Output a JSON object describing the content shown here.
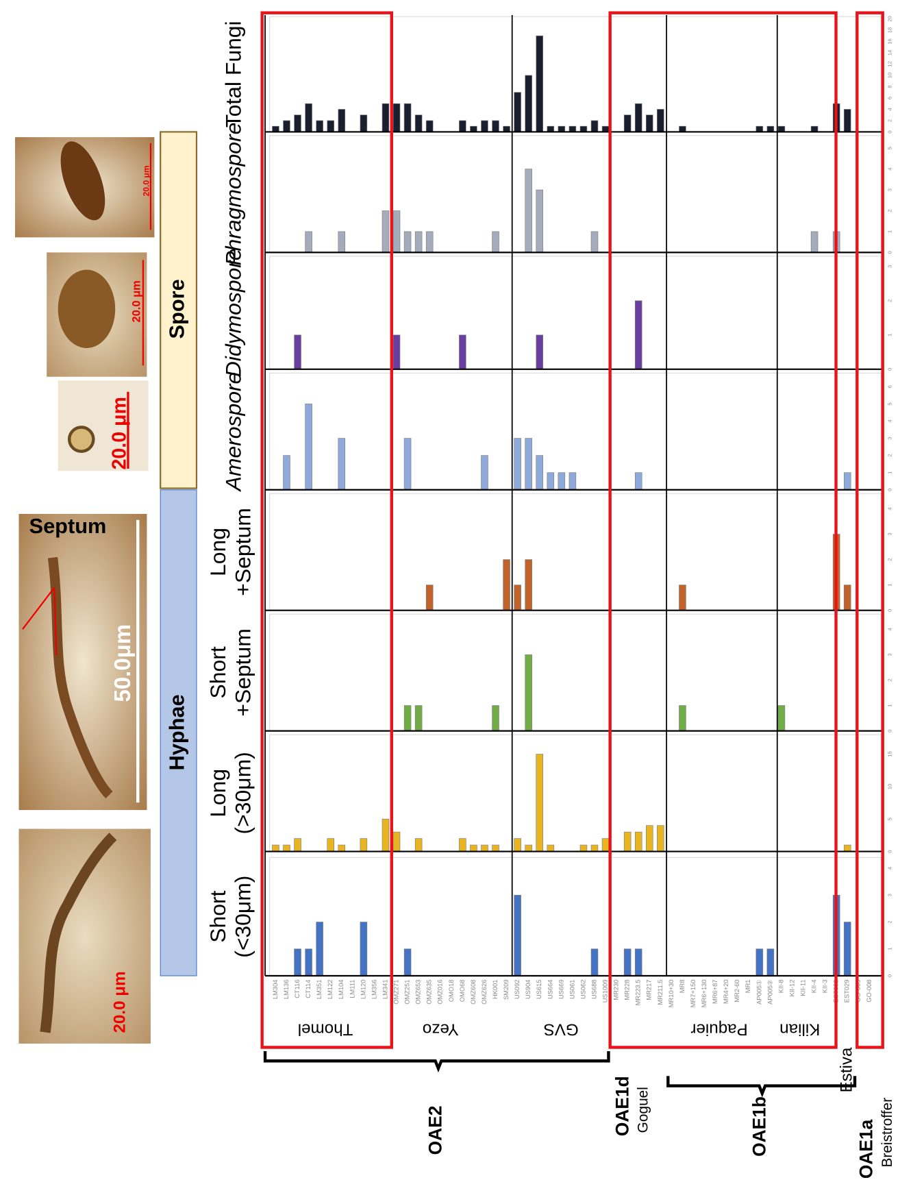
{
  "chart_data": {
    "type": "bar",
    "categories": [
      "LM304",
      "LM136",
      "CT116",
      "CT114",
      "LM351",
      "LM122",
      "LM104",
      "LM111",
      "LM120",
      "LM356",
      "LM341",
      "OMZ271",
      "OMZ251",
      "OMZ653",
      "OMZ635",
      "OMZ016",
      "OMO18",
      "OMO68",
      "OMZ608",
      "OMZ626",
      "HK001",
      "SM209",
      "US092",
      "US904",
      "US615",
      "US664",
      "US669",
      "US061",
      "US062",
      "US688",
      "US1009",
      "MR230",
      "MR228",
      "MR223.5",
      "MR217",
      "MR211.5",
      "MR10+30",
      "MR8",
      "MR7+150",
      "MR6+130",
      "MR6+87",
      "MR4+20",
      "MR2-60",
      "MR1",
      "AP005①",
      "AP005②",
      "KII-8",
      "KII-12",
      "KII-11",
      "KII-4",
      "KII-3",
      "EST002",
      "EST029",
      "GO-009",
      "GO-008"
    ],
    "series": [
      {
        "name": "Short\n(<30μm)",
        "color": "#4472c4",
        "ylim": [
          0,
          4.4
        ],
        "yticks": [
          0,
          1,
          2,
          3,
          4
        ],
        "values": [
          0,
          0,
          1,
          1,
          2,
          0,
          0,
          0,
          2,
          0,
          0,
          0,
          1,
          0,
          0,
          0,
          0,
          0,
          0,
          0,
          0,
          0,
          3,
          0,
          0,
          0,
          0,
          0,
          0,
          1,
          0,
          0,
          1,
          1,
          0,
          0,
          0,
          0,
          0,
          0,
          0,
          0,
          0,
          0,
          1,
          1,
          0,
          0,
          0,
          0,
          0,
          3,
          2,
          0,
          0
        ]
      },
      {
        "name": "Long\n(>30μm)",
        "color": "#e8b520",
        "ylim": [
          0,
          18
        ],
        "yticks": [
          0,
          5,
          10,
          15
        ],
        "values": [
          1,
          1,
          2,
          0,
          0,
          2,
          1,
          0,
          2,
          0,
          5,
          3,
          0,
          2,
          0,
          0,
          0,
          2,
          1,
          1,
          1,
          0,
          2,
          1,
          15,
          1,
          0,
          0,
          1,
          1,
          2,
          0,
          3,
          3,
          4,
          4,
          0,
          0,
          0,
          0,
          0,
          0,
          0,
          0,
          0,
          0,
          0,
          0,
          0,
          0,
          0,
          0,
          1,
          0,
          0
        ]
      },
      {
        "name": "Short\n+Septum",
        "color": "#70ad47",
        "ylim": [
          0,
          4.6
        ],
        "yticks": [
          0,
          1,
          2,
          3,
          4
        ],
        "values": [
          0,
          0,
          0,
          0,
          0,
          0,
          0,
          0,
          0,
          0,
          0,
          0,
          1,
          1,
          0,
          0,
          0,
          0,
          0,
          0,
          1,
          0,
          0,
          3,
          0,
          0,
          0,
          0,
          0,
          0,
          0,
          0,
          0,
          0,
          0,
          0,
          0,
          1,
          0,
          0,
          0,
          0,
          0,
          0,
          0,
          0,
          1,
          0,
          0,
          0,
          0,
          0,
          0,
          0,
          0
        ]
      },
      {
        "name": "Long\n+Septum",
        "color": "#c0622a",
        "ylim": [
          0,
          4.6
        ],
        "yticks": [
          0,
          1,
          2,
          3,
          4
        ],
        "values": [
          0,
          0,
          0,
          0,
          0,
          0,
          0,
          0,
          0,
          0,
          0,
          0,
          0,
          0,
          1,
          0,
          0,
          0,
          0,
          0,
          0,
          2,
          1,
          2,
          0,
          0,
          0,
          0,
          0,
          0,
          0,
          0,
          0,
          0,
          0,
          0,
          0,
          1,
          0,
          0,
          0,
          0,
          0,
          0,
          0,
          0,
          0,
          0,
          0,
          0,
          0,
          3,
          1,
          0,
          0
        ]
      },
      {
        "name": "Amerospore",
        "color": "#8eaadb",
        "ylim": [
          0,
          6.8
        ],
        "yticks": [
          0,
          1,
          2,
          3,
          4,
          5,
          6
        ],
        "values": [
          0,
          2,
          0,
          5,
          0,
          0,
          3,
          0,
          0,
          0,
          0,
          0,
          3,
          0,
          0,
          0,
          0,
          0,
          0,
          2,
          0,
          0,
          3,
          3,
          2,
          1,
          1,
          1,
          0,
          0,
          0,
          0,
          0,
          1,
          0,
          0,
          0,
          0,
          0,
          0,
          0,
          0,
          0,
          0,
          0,
          0,
          0,
          0,
          0,
          0,
          0,
          0,
          1,
          0,
          0
        ]
      },
      {
        "name": "Didymospore",
        "color": "#6a3ea1",
        "ylim": [
          0,
          3.3
        ],
        "yticks": [
          0,
          1,
          2,
          3
        ],
        "values": [
          0,
          0,
          1,
          0,
          0,
          0,
          0,
          0,
          0,
          0,
          0,
          1,
          0,
          0,
          0,
          0,
          0,
          1,
          0,
          0,
          0,
          0,
          0,
          0,
          1,
          0,
          0,
          0,
          0,
          0,
          0,
          0,
          0,
          2,
          0,
          0,
          0,
          0,
          0,
          0,
          0,
          0,
          0,
          0,
          0,
          0,
          0,
          0,
          0,
          0,
          0,
          0,
          0,
          0,
          0
        ]
      },
      {
        "name": "Phragmospore",
        "color": "#a4acbb",
        "ylim": [
          0,
          5.6
        ],
        "yticks": [
          0,
          1,
          2,
          3,
          4,
          5
        ],
        "values": [
          0,
          0,
          0,
          1,
          0,
          0,
          1,
          0,
          0,
          0,
          2,
          2,
          1,
          1,
          1,
          0,
          0,
          0,
          0,
          0,
          1,
          0,
          0,
          4,
          3,
          0,
          0,
          0,
          0,
          1,
          0,
          0,
          0,
          0,
          0,
          0,
          0,
          0,
          0,
          0,
          0,
          0,
          0,
          0,
          0,
          0,
          0,
          0,
          0,
          1,
          0,
          1,
          0,
          0,
          0
        ]
      },
      {
        "name": "Total Fungi",
        "color": "#1a1f30",
        "ylim": [
          0,
          20.4
        ],
        "yticks": [
          0,
          2,
          4,
          6,
          8,
          10,
          12,
          14,
          16,
          18,
          20
        ],
        "values": [
          1,
          2,
          3,
          5,
          2,
          2,
          4,
          0,
          3,
          0,
          5,
          5,
          5,
          3,
          2,
          0,
          0,
          2,
          1,
          2,
          2,
          1,
          7,
          10,
          17,
          1,
          1,
          1,
          1,
          2,
          1,
          0,
          3,
          5,
          3,
          4,
          0,
          1,
          0,
          0,
          0,
          0,
          0,
          0,
          1,
          1,
          1,
          0,
          0,
          1,
          0,
          5,
          4,
          0,
          0
        ]
      }
    ],
    "sections": [
      "Thomel",
      "Yezo",
      "GVS",
      "Paquier",
      "Kilian",
      "Estiva"
    ],
    "events": [
      {
        "name": "OAE2"
      },
      {
        "name": "OAE1d",
        "location": "Goguel"
      },
      {
        "name": "OAE1b"
      },
      {
        "name": "OAE1a",
        "location": "Breistroffer"
      }
    ],
    "groups": [
      "Hyphae",
      "Spore"
    ],
    "photo_labels": [
      "20.0 μm",
      "50.0μm",
      "Septum",
      "20.0 μm",
      "20.0 μm",
      "20.0 μm"
    ]
  }
}
